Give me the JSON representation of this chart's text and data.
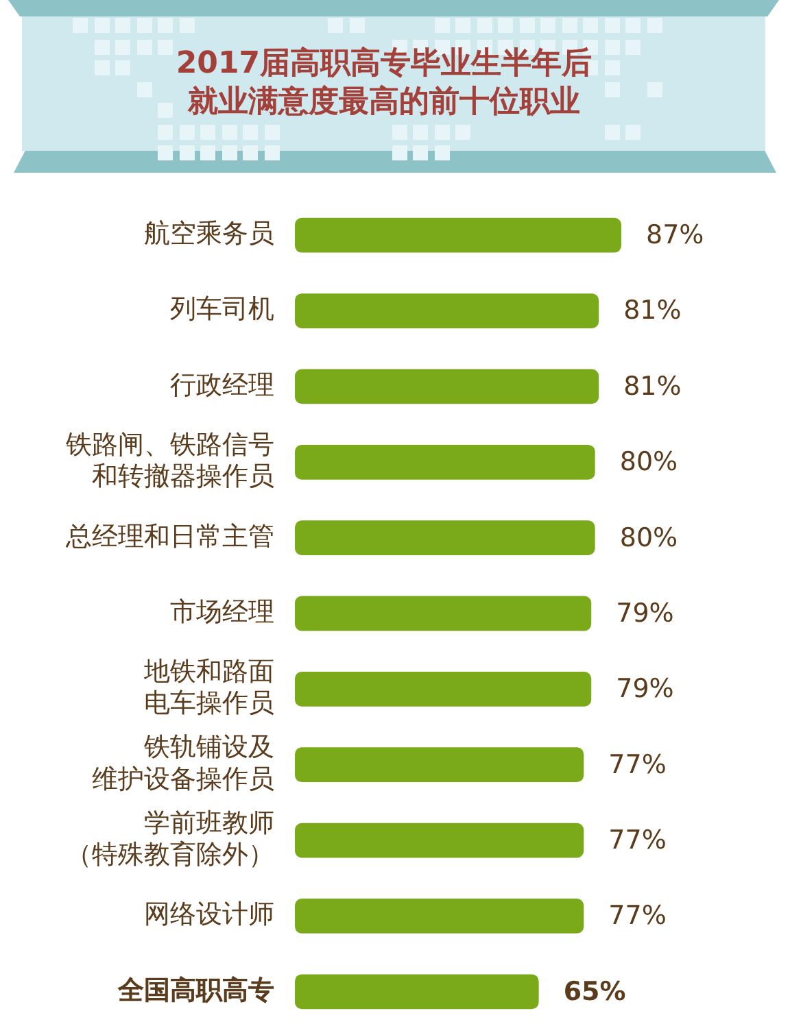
{
  "chart_data": {
    "type": "bar",
    "orientation": "horizontal",
    "title": "2017届高职高专毕业生半年后就业满意度最高的前十位职业",
    "categories": [
      "航空乘务员",
      "列车司机",
      "行政经理",
      "铁路闸、铁路信号和转撤器操作员",
      "总经理和日常主管",
      "市场经理",
      "地铁和路面电车操作员",
      "铁轨铺设及维护设备操作员",
      "学前班教师（特殊教育除外）",
      "网络设计师",
      "全国高职高专"
    ],
    "values": [
      87,
      81,
      81,
      80,
      80,
      79,
      79,
      77,
      77,
      77,
      65
    ],
    "value_labels": [
      "87%",
      "81%",
      "81%",
      "80%",
      "80%",
      "79%",
      "79%",
      "77%",
      "77%",
      "77%",
      "65%"
    ],
    "color": "#7aaa1a",
    "tick_labels": "y"
  }
}
